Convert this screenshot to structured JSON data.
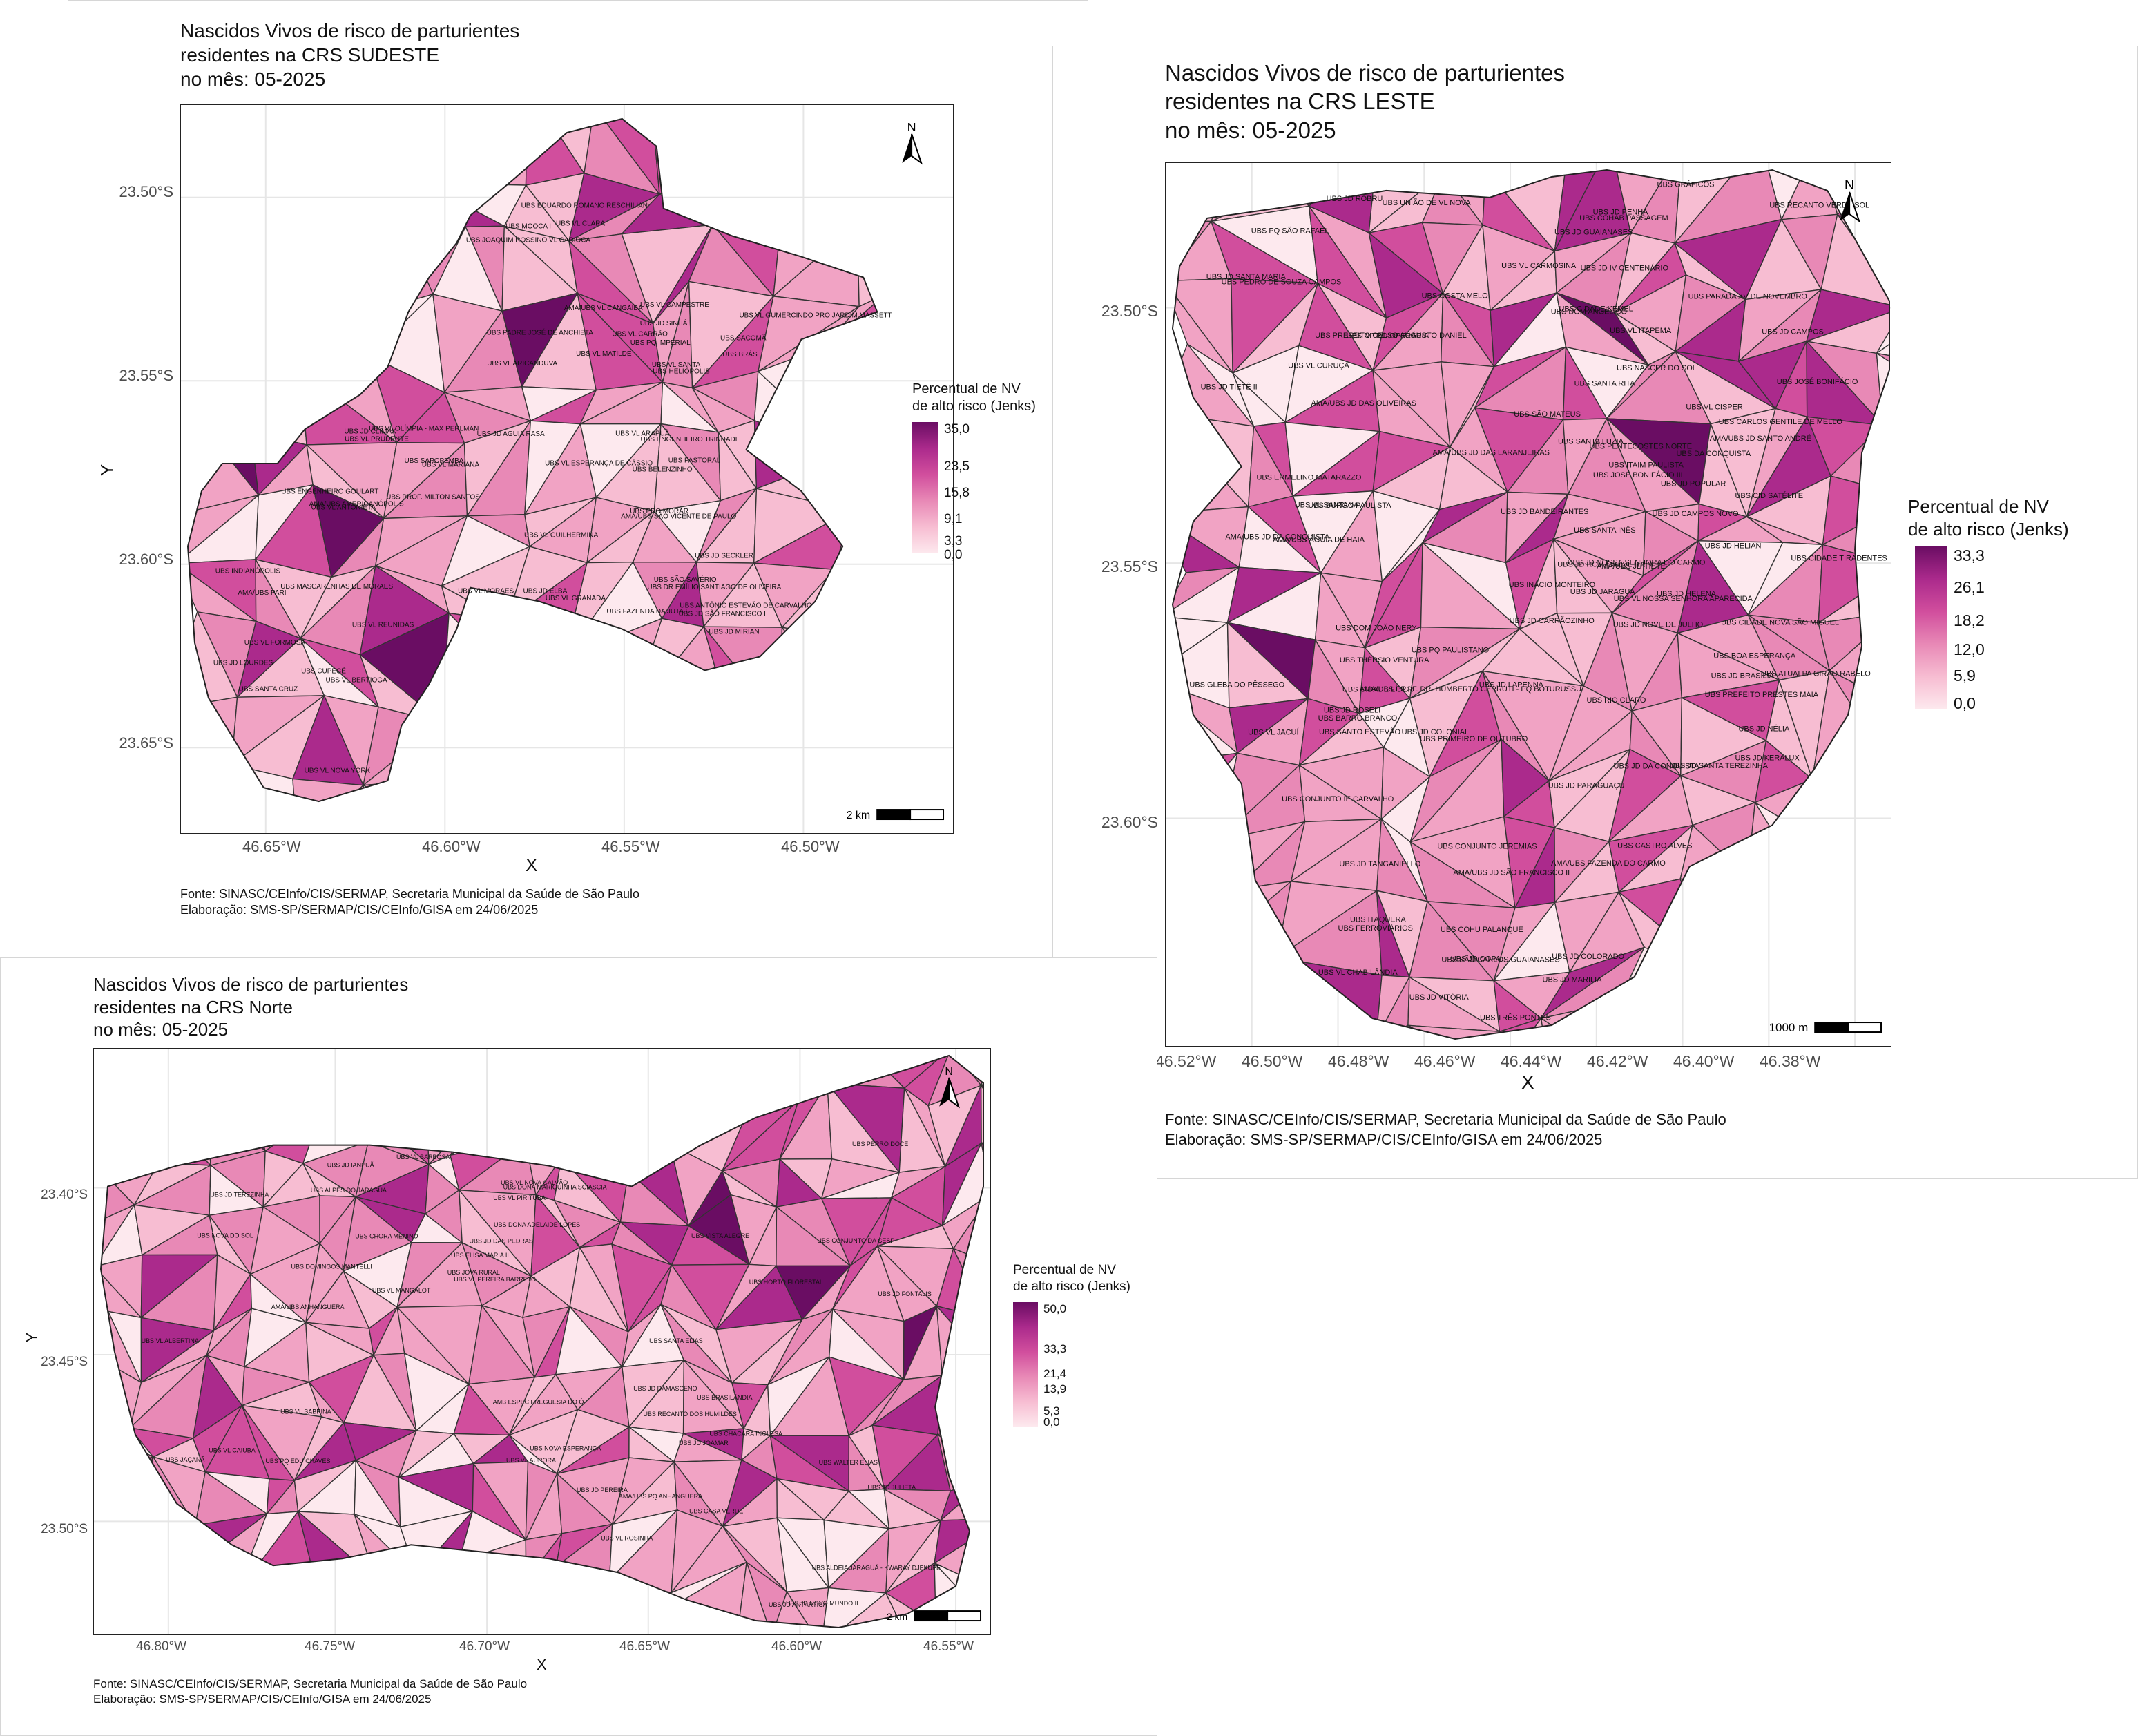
{
  "maps": [
    {
      "id": "sudeste",
      "title_lines": [
        "Nascidos Vivos de risco de parturientes",
        "residentes na CRS SUDESTE",
        "no mês: 05-2025"
      ],
      "x_ticks": [
        "46.65°W",
        "46.60°W",
        "46.55°W",
        "46.50°W"
      ],
      "y_ticks": [
        "23.50°S",
        "23.55°S",
        "23.60°S",
        "23.65°S"
      ],
      "xlabel": "X",
      "ylabel": "Y",
      "legend_title_lines": [
        "Percentual de NV",
        "de alto risco (Jenks)"
      ],
      "legend_values": [
        "35,0",
        "23,5",
        "15,8",
        "9,1",
        "3,3",
        "0,0"
      ],
      "legend_max_color": "#6a0d63",
      "scale_label": "2 km",
      "north_label": "N",
      "source_lines": [
        "Fonte: SINASC/CEInfo/CIS/SERMAP, Secretaria Municipal da Saúde de São Paulo",
        "Elaboração: SMS-SP/SERMAP/CIS/CEInfo/GISA em 24/06/2025"
      ],
      "unit_labels": [
        "UBS JD SÃO FRANCISCO I",
        "UBS ENGENHEIRO GOULART",
        "AMA/UBS VL CANGAÍBA",
        "UBS ENGENHEIRO TRINDADE",
        "UBS VL ESPERANÇA DE CÁSSIO",
        "UBS DR EMÍLIO SANTIAGO DE OLIVEIRA",
        "UBS VL GRANADA",
        "UBS VL GUILHERMINA",
        "UBS ANTÔNIO ESTEVÃO DE CARVALHO",
        "AMA/UBS PARI",
        "UBS BELENZINHO",
        "UBS VL ARICANDUVA",
        "UBS VL MATILDE",
        "UBS JD AGUIA RASA",
        "UBS VL FORMOSA",
        "UBS BRÁS",
        "UBS MOOCA I",
        "UBS VL BERTIOGA",
        "UBS VL CARRÃO",
        "UBS PADRE JOSÉ DE ANCHIETA",
        "UBS VL ANTONIETA",
        "UBS VL NOVA YORK",
        "UBS VL MARIANA",
        "UBS SANTA CRUZ",
        "AMA/UBS SÃO VICENTE DE PAULO",
        "UBS JOAQUIM ROSSINO VL CARIOCA",
        "UBS VL PRUDENTE",
        "UBS JD SINHÁ",
        "UBS PRO MORAR",
        "UBS VL OLÍMPIA - MAX PERLMAN",
        "UBS VL GUMERCINDO PRO JARDIM MASSETT",
        "UBS INDIANÓPOLIS",
        "UBS PROF. MILTON SANTOS",
        "UBS SACOMÃ",
        "UBS HELIÓPOLIS",
        "UBS JD SECKLER",
        "UBS VL ARAPUÃ",
        "UBS PQ IMPERIAL",
        "UBS VL MORAES",
        "UBS EDUARDO ROMANO RESCHILIAN",
        "UBS CUPECÊ",
        "UBS JD MIRIAN",
        "UBS VL CAMPESTRE",
        "UBS JD LOURDES",
        "AMA/UBS AMERICANÓPOLIS",
        "UBS VL CLARA",
        "UBS SÃO SAVÉRIO",
        "UBS JD CLÍMAX",
        "UBS JD ELBA",
        "UBS PASTORAL",
        "UBS FAZENDA DA JUTA I",
        "UBS MASCARENHAS DE MORAES",
        "UBS SAPOPEMBA",
        "UBS VL REUNIDAS",
        "UBS VL SANTA"
      ]
    },
    {
      "id": "leste",
      "title_lines": [
        "Nascidos Vivos de risco de parturientes",
        "residentes na CRS LESTE",
        "no mês: 05-2025"
      ],
      "x_ticks": [
        "46.52°W",
        "46.50°W",
        "46.48°W",
        "46.46°W",
        "46.44°W",
        "46.42°W",
        "46.40°W",
        "46.38°W"
      ],
      "y_ticks": [
        "23.50°S",
        "23.55°S",
        "23.60°S"
      ],
      "xlabel": "X",
      "ylabel": "Y",
      "legend_title_lines": [
        "Percentual de NV",
        "de alto risco (Jenks)"
      ],
      "legend_values": [
        "33,3",
        "26,1",
        "18,2",
        "12,0",
        "5,9",
        "0,0"
      ],
      "legend_max_color": "#6a0d63",
      "scale_label": "1000 m",
      "north_label": "N",
      "source_lines": [
        "Fonte: SINASC/CEInfo/CIS/SERMAP, Secretaria Municipal da Saúde de São Paulo",
        "Elaboração: SMS-SP/SERMAP/CIS/CEInfo/GISA em 24/06/2025"
      ],
      "unit_labels": [
        "UBS JD HELENA",
        "UBS UNIÃO DE VL NOVA",
        "UBS JD KERALUX",
        "UBS TRÊS PONTES",
        "UBS PQ PAULISTANO",
        "UBS JD ROMANO VL ITAIM",
        "UBS VL CISPER",
        "UBS ERMELINO MATARAZZO",
        "UBS JD LAPENNA",
        "UBS VL JACUÍ",
        "AMA/UBS JD DAS OLIVEIRAS",
        "AMA/UBS PROF. DR. HUMBERTO CERRUTI - PQ BOTURUSSU",
        "UBS SANTA INÊS",
        "UBS NITRO OPERÁRIA",
        "UBS ITAIM PAULISTA",
        "UBS COSTA MELO",
        "UBS JD JARAGUÁ",
        "UBS PEDRO DE SOUZA CAMPOS",
        "UBS VL CURUÇÁ",
        "UBS JD CAMPOS NOVO",
        "UBS PENTECOSTES NORTE",
        "UBS JD PENHA",
        "UBS THÉRSIO VENTURA",
        "UBS SANTA RITA",
        "UBS ATUALPA GIRÃO RABELO",
        "UBS CIDADE KEMEL",
        "UBS JD POPULAR",
        "UBS CIDADE NOVA SÃO MIGUEL",
        "UBS JD CAMPOS",
        "UBS JD NÉLIA",
        "UBS BURGO PAULISTA",
        "UBS VL SANTANA",
        "UBS JD ROBRU",
        "UBS SANTA LUZIA",
        "AMA/UBS ÁGUIA DE HAIA",
        "UBS CONJUNTO IE CARVALHO",
        "UBS PARADA XV DE NOVEMBRO",
        "UBS DOM JOÃO NERY",
        "UBS PRIMEIRO DE OUTUBRO",
        "UBS VL NOSSA SENHORA APARECIDA",
        "UBS VL CHABILÂNDIA",
        "UBS ITAQUERA",
        "UBS JD BANDEIRANTES",
        "UBS JOSÉ BONIFÁCIO III",
        "UBS JD GUAIANASES",
        "UBS JD SANTA MARIA",
        "UBS CIDADE LÍDER",
        "UBS JOSÉ BONIFÁCIO",
        "UBS JD TANGANIELLO",
        "UBS VL CARMOSINA",
        "UBS SÃO CARLOS GUAIANASES",
        "UBS PREFEITO CELSO AUGUSTO DANIEL",
        "UBS VL ITAPEMA",
        "UBS JD BRASÍLIA",
        "UBS SANTO ESTEVÃO",
        "UBS JD COPA",
        "UBS PREFEITO PRESTES MAIA",
        "UBS INÁCIO MONTEIRO",
        "UBS JD MARILIA",
        "UBS JD HELIAN",
        "UBS COHAB PASSAGEM",
        "AMA/UBS FAZENDA DO CARMO",
        "UBS CASTRO ALVES",
        "UBS DOM ANGÉLICO",
        "UBS JD SANTA TEREZINHA",
        "UBS JD NOSSA SENHORA DO CARMO",
        "UBS GLEBA DO PÊSSEGO",
        "UBS BARRO BRANCO",
        "UBS JD IV CENTENÁRIO",
        "UBS JD TIETÊ II",
        "UBS CIDADE TIRADENTES",
        "UBS JD VITÓRIA",
        "UBS JD PARAGUAÇU",
        "UBS JD NOVE DE JULHO",
        "UBS BOA ESPERANÇA",
        "UBS NASCER DO SOL",
        "UBS CARLOS GENTILE DE MELLO",
        "UBS FERROVIÁRIOS",
        "UBS JD COLONIAL",
        "AMA/UBS JD TIETÊ",
        "UBS CID SATÉLITE",
        "AMA/UBS JD DA CONQUISTA",
        "UBS JD ROSELI",
        "UBS CONJUNTO JEREMIAS",
        "UBS SÃO MATEUS",
        "UBS JD CARRÃOZINHO",
        "UBS JD DA CONQUISTA II",
        "UBS COHU PALANQUE",
        "UBS RECANTO VERDE SOL",
        "UBS GRÁFICOS",
        "UBS DA CONQUISTA",
        "UBS JD COLORADO",
        "UBS RIO CLARO",
        "AMA/UBS JD DAS LARANJEIRAS",
        "UBS PQ SÃO RAFAEL",
        "AMA/UBS JD SÃO FRANCISCO II",
        "AMA/UBS JD SANTO ANDRÉ"
      ]
    },
    {
      "id": "norte",
      "title_lines": [
        "Nascidos Vivos de risco de parturientes",
        "residentes na CRS Norte",
        "no mês: 05-2025"
      ],
      "x_ticks": [
        "46.80°W",
        "46.75°W",
        "46.70°W",
        "46.65°W",
        "46.60°W",
        "46.55°W"
      ],
      "y_ticks": [
        "23.40°S",
        "23.45°S",
        "23.50°S"
      ],
      "xlabel": "X",
      "ylabel": "Y",
      "legend_title_lines": [
        "Percentual de NV",
        "de alto risco (Jenks)"
      ],
      "legend_values": [
        "50,0",
        "33,3",
        "21,4",
        "13,9",
        "5,3",
        "0,0"
      ],
      "legend_max_color": "#6a0d63",
      "scale_label": "2 km",
      "north_label": "N",
      "source_lines": [
        "Fonte: SINASC/CEInfo/CIS/SERMAP, Secretaria Municipal da Saúde de São Paulo",
        "Elaboração: SMS-SP/SERMAP/CIS/CEInfo/GISA em 24/06/2025"
      ],
      "unit_labels": [
        "UBS VL CAIUBA",
        "UBS RECANTO DOS HUMILDES",
        "UBS JD DAS PEDRAS",
        "UBS JD PEREIRA",
        "AMA/UBS PQ ANHANGUERA",
        "UBS VL ROSINHA",
        "UBS NOVA DO SOL",
        "UBS JD IANPUÃ",
        "UBS VISTA ALEGRE",
        "UBS JD ANTÁRTICA",
        "UBS DONA MARIQUINHA SCIASCIA",
        "UBS JD FONTALIS",
        "UBS VL NOVA GALVÃO",
        "UBS JOVA RURAL",
        "UBS PERRO DOCE",
        "UBS ALPES DO JARAGUÁ",
        "UBS ELISA MARIA II",
        "UBS HORTO FLORESTAL",
        "UBS VL ALBERTINA",
        "UBS JD JOAMAR",
        "UBS ALDEIA JARAGUÁ - KWARAY DJEKUPÉ",
        "UBS NOVA ESPERANÇA",
        "UBS JD DAMASCENO",
        "UBS JD TEREZINHA",
        "UBS CONJUNTO DA CESP",
        "UBS DOMINGOS MANTELLI",
        "UBS VL AURORA",
        "UBS JAÇANÃ",
        "UBS VL PIRITUBA",
        "UBS PQ EDU CHAVES",
        "AMA/UBS ANHANGUERA",
        "UBS VL SABRINA",
        "UBS SANTA ELIAS",
        "UBS VL PEREIRA BARRETO",
        "UBS JD JULIETA",
        "UBS CHORA MENINO",
        "UBS BRASILÂNDIA",
        "UBS DONA ADELAIDE LOPES",
        "UBS CASA VERDE",
        "UBS CHÁCARA INGLESA",
        "UBS VL MANGALOT",
        "AMB ESPEC FREGUESIA DO Ó",
        "UBS WALTER ELIAS",
        "UBS JD NOVO MUNDO II",
        "UBS VL BARBOSA"
      ]
    }
  ]
}
